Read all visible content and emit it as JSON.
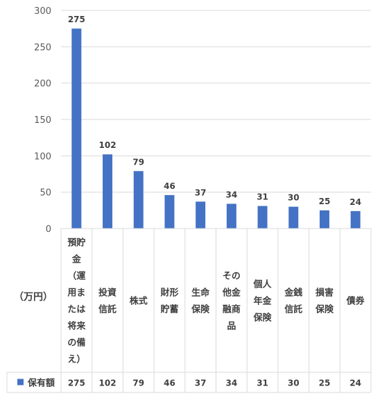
{
  "chart_data": {
    "type": "bar",
    "title": "",
    "xlabel": "",
    "ylabel": "",
    "unit_label": "（万円）",
    "categories": [
      "預貯金（運用または将来の備え）",
      "投資信託",
      "株式",
      "財形貯蓄",
      "生命保険",
      "その他金融商品",
      "個人年金保険",
      "金銭信託",
      "損害保険",
      "債券"
    ],
    "category_lines": [
      [
        "預貯",
        "金",
        "（運",
        "用ま",
        "たは",
        "将来",
        "の備",
        "え）"
      ],
      [
        "投資",
        "信託"
      ],
      [
        "株式"
      ],
      [
        "財形",
        "貯蓄"
      ],
      [
        "生命",
        "保険"
      ],
      [
        "その",
        "他金",
        "融商",
        "品"
      ],
      [
        "個人",
        "年金",
        "保険"
      ],
      [
        "金銭",
        "信託"
      ],
      [
        "損害",
        "保険"
      ],
      [
        "債券"
      ]
    ],
    "series": [
      {
        "name": "保有額",
        "color": "#4472C4",
        "values": [
          275,
          102,
          79,
          46,
          37,
          34,
          31,
          30,
          25,
          24
        ]
      }
    ],
    "yticks": [
      0,
      50,
      100,
      150,
      200,
      250,
      300
    ],
    "ylim": [
      0,
      300
    ],
    "grid": true,
    "legend": "data-table",
    "data_labels": true
  }
}
